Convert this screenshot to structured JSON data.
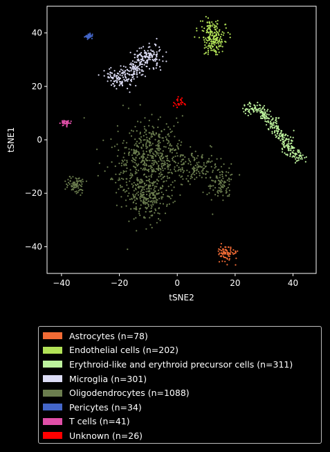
{
  "chart_data": {
    "type": "scatter",
    "xlabel": "tSNE2",
    "ylabel": "tSNE1",
    "xlim": [
      -45,
      48
    ],
    "ylim": [
      -50,
      50
    ],
    "xticks": [
      -40,
      -20,
      0,
      20,
      40
    ],
    "yticks": [
      -40,
      -20,
      0,
      20,
      40
    ],
    "xtick_labels": [
      "−40",
      "−20",
      "0",
      "20",
      "40"
    ],
    "ytick_labels": [
      "−40",
      "−20",
      "0",
      "20",
      "40"
    ],
    "grid": false,
    "legend_position": "below",
    "series": [
      {
        "name": "Astrocytes (n=78)",
        "color": "#f26b35",
        "n": 78,
        "clusters": [
          {
            "center": [
              16.8,
              -42.5
            ],
            "spread": [
              1.4,
              1.4
            ]
          }
        ]
      },
      {
        "name": "Endothelial cells (n=202)",
        "color": "#b2e257",
        "n": 202,
        "clusters": [
          {
            "center": [
              12.5,
              38.5
            ],
            "spread": [
              2.2,
              3.2
            ]
          }
        ]
      },
      {
        "name": "Erythroid-like and erythroid precursor cells (n=311)",
        "color": "#bdf29d",
        "n": 311,
        "path": [
          [
            23,
            11
          ],
          [
            28,
            12
          ],
          [
            33,
            6
          ],
          [
            37,
            0
          ],
          [
            40,
            -5
          ],
          [
            43,
            -7
          ]
        ],
        "path_spread": 1.1
      },
      {
        "name": "Microglia (n=301)",
        "color": "#dcdcf5",
        "n": 301,
        "path": [
          [
            -24,
            23
          ],
          [
            -18,
            23
          ],
          [
            -14,
            27
          ],
          [
            -12,
            31
          ],
          [
            -9,
            33
          ],
          [
            -7,
            29
          ]
        ],
        "path_spread": 1.8
      },
      {
        "name": "Oligodendrocytes (n=1088)",
        "color": "#6b7d4e",
        "n": 1088,
        "clusters": [
          {
            "center": [
              -9,
              -5
            ],
            "spread": [
              6,
              6
            ],
            "weight": 0.42
          },
          {
            "center": [
              -11,
              -20
            ],
            "spread": [
              4,
              5
            ],
            "weight": 0.3
          },
          {
            "center": [
              6,
              -10
            ],
            "spread": [
              5,
              3
            ],
            "weight": 0.13
          },
          {
            "center": [
              15,
              -17
            ],
            "spread": [
              2,
              3
            ],
            "weight": 0.08
          },
          {
            "center": [
              -35,
              -17
            ],
            "spread": [
              1.5,
              1.5
            ],
            "weight": 0.07
          }
        ]
      },
      {
        "name": "Pericytes (n=34)",
        "color": "#4466c8",
        "n": 34,
        "clusters": [
          {
            "center": [
              -30.5,
              38.5
            ],
            "spread": [
              0.6,
              0.6
            ]
          }
        ]
      },
      {
        "name": "T cells (n=41)",
        "color": "#e04fa8",
        "n": 41,
        "clusters": [
          {
            "center": [
              -38.5,
              6.5
            ],
            "spread": [
              0.8,
              0.6
            ]
          }
        ]
      },
      {
        "name": "Unknown (n=26)",
        "color": "#ff0000",
        "n": 26,
        "clusters": [
          {
            "center": [
              0.8,
              14
            ],
            "spread": [
              1.2,
              0.9
            ]
          }
        ]
      }
    ]
  }
}
